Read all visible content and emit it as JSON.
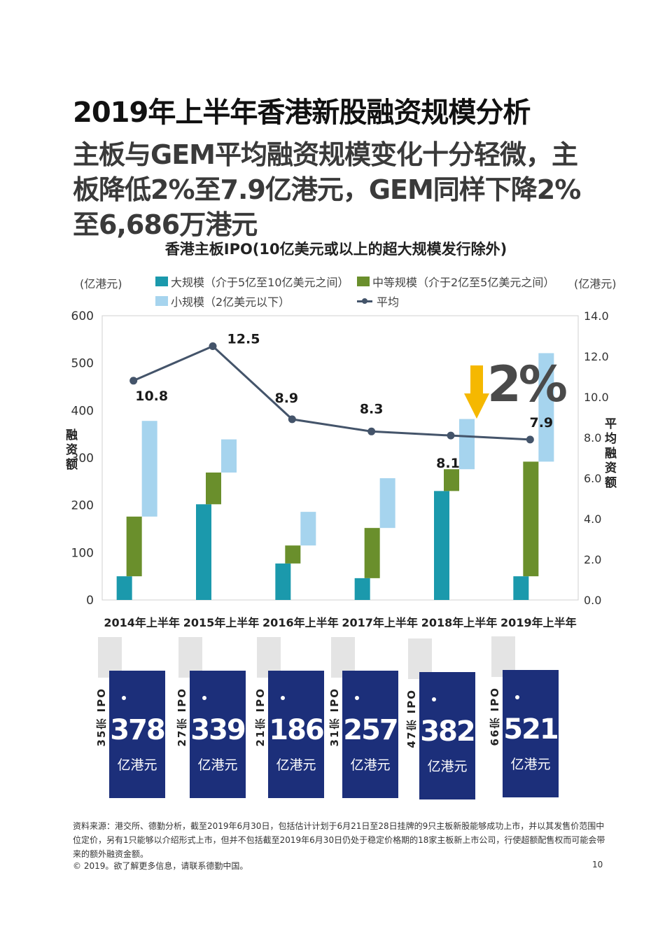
{
  "page": {
    "title": "2019年上半年香港新股融资规模分析",
    "subtitle": "主板与GEM平均融资规模变化十分轻微，主板降低2%至7.9亿港元，GEM同样下降2%至6,686万港元",
    "footnote": "资料来源：港交所、德勤分析，截至2019年6月30日，包括估计计划于6月21日至28日挂牌的9只主板新股能够成功上市，并以其发售价范围中位定价，另有1只能够以介绍形式上市，但并不包括截至2019年6月30日仍处于稳定价格期的18家主板新上市公司，行使超额配售权而可能会带来的额外融资金额。",
    "copyright": "© 2019。欲了解更多信息，请联系德勤中国。",
    "page_number": "10"
  },
  "colors": {
    "large": "#1b99ac",
    "medium": "#6a8f2c",
    "small": "#a6d4ee",
    "average": "#44546a",
    "card": "#1c2f7a",
    "arrow": "#f5b800"
  },
  "chart_data": {
    "type": "bar",
    "stacked": true,
    "title": "香港主板IPO(10亿美元或以上的超大规模发行除外)",
    "y_left_unit": "(亿港元)",
    "y_right_unit": "(亿港元)",
    "ylabel": "融资额",
    "y2label": "平均融资额",
    "ylim": [
      0,
      600
    ],
    "y2lim": [
      0,
      14
    ],
    "y_ticks": [
      "0",
      "100",
      "200",
      "300",
      "400",
      "500",
      "600"
    ],
    "y2_ticks": [
      "0.0",
      "2.0",
      "4.0",
      "6.0",
      "8.0",
      "10.0",
      "12.0",
      "14.0"
    ],
    "categories": [
      "2014年上半年",
      "2015年上半年",
      "2016年上半年",
      "2017年上半年",
      "2018年上半年",
      "2019年上半年"
    ],
    "series": [
      {
        "name": "大规模（介于5亿至10亿美元之间）",
        "key": "large",
        "values": [
          50,
          202,
          77,
          46,
          230,
          50
        ]
      },
      {
        "name": "中等规模（介于2亿至5亿美元之间）",
        "key": "medium",
        "values": [
          126,
          67,
          38,
          106,
          46,
          242
        ]
      },
      {
        "name": "小规模（2亿美元以下）",
        "key": "small",
        "values": [
          202,
          70,
          71,
          105,
          106,
          229
        ]
      }
    ],
    "line": {
      "name": "平均",
      "values": [
        10.8,
        12.5,
        8.9,
        8.3,
        8.1,
        7.9
      ],
      "labels": [
        "10.8",
        "12.5",
        "8.9",
        "8.3",
        "8.1",
        "7.9"
      ]
    },
    "annotation": {
      "text": "2%",
      "arrow": "down"
    },
    "legend_position": "top",
    "grid": false
  },
  "cards": [
    {
      "ipo": "35宗 IPO",
      "amount": "378",
      "unit": "亿港元"
    },
    {
      "ipo": "27宗 IPO",
      "amount": "339",
      "unit": "亿港元"
    },
    {
      "ipo": "21宗 IPO",
      "amount": "186",
      "unit": "亿港元"
    },
    {
      "ipo": "31宗 IPO",
      "amount": "257",
      "unit": "亿港元"
    },
    {
      "ipo": "47宗 IPO",
      "amount": "382",
      "unit": "亿港元"
    },
    {
      "ipo": "66宗 IPO",
      "amount": "521",
      "unit": "亿港元"
    }
  ]
}
